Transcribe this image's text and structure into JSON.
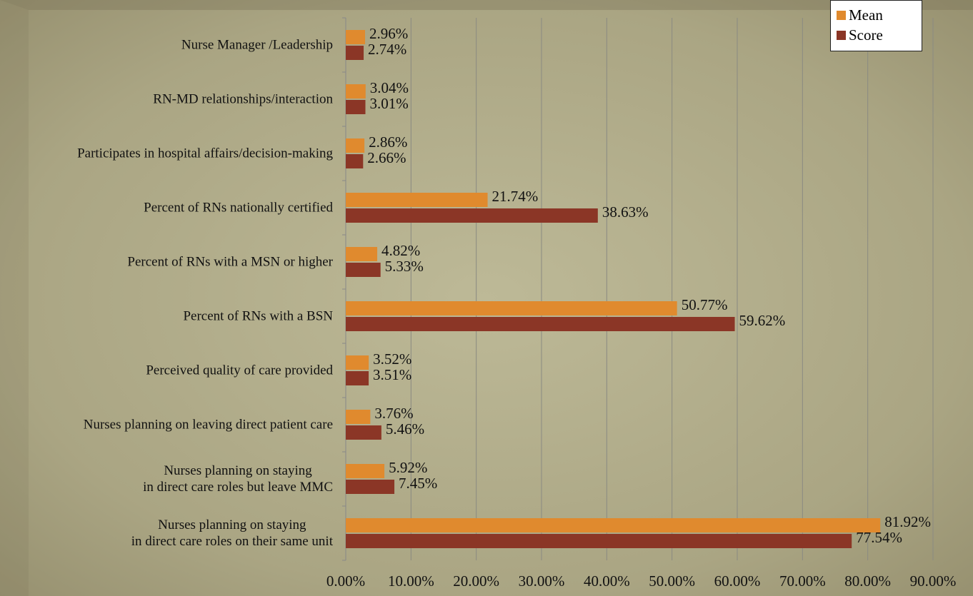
{
  "chart_data": {
    "type": "bar",
    "orientation": "horizontal",
    "categories": [
      "Nurse Manager /Leadership",
      "RN-MD relationships/interaction",
      "Participates in hospital affairs/decision-making",
      "Percent of RNs nationally certified",
      "Percent of RNs with a MSN or higher",
      "Percent of RNs with a BSN",
      "Perceived quality of care provided",
      "Nurses planning on leaving direct patient care",
      "Nurses planning on staying\nin direct care roles but leave MMC",
      "Nurses planning on staying\nin direct care roles on their same unit"
    ],
    "series": [
      {
        "name": "Mean",
        "color": "#e08a2e",
        "values": [
          2.96,
          3.04,
          2.86,
          21.74,
          4.82,
          50.77,
          3.52,
          3.76,
          5.92,
          81.92
        ],
        "value_labels": [
          "2.96%",
          "3.04%",
          "2.86%",
          "21.74%",
          "4.82%",
          "50.77%",
          "3.52%",
          "3.76%",
          "5.92%",
          "81.92%"
        ]
      },
      {
        "name": "Score",
        "color": "#8b3626",
        "values": [
          2.74,
          3.01,
          2.66,
          38.63,
          5.33,
          59.62,
          3.51,
          5.46,
          7.45,
          77.54
        ],
        "value_labels": [
          "2.74%",
          "3.01%",
          "2.66%",
          "38.63%",
          "5.33%",
          "59.62%",
          "3.51%",
          "5.46%",
          "7.45%",
          "77.54%"
        ]
      }
    ],
    "xlim": [
      0,
      90
    ],
    "xticks": [
      {
        "value": 0,
        "label": "0.00%"
      },
      {
        "value": 10,
        "label": "10.00%"
      },
      {
        "value": 20,
        "label": "20.00%"
      },
      {
        "value": 30,
        "label": "30.00%"
      },
      {
        "value": 40,
        "label": "40.00%"
      },
      {
        "value": 50,
        "label": "50.00%"
      },
      {
        "value": 60,
        "label": "60.00%"
      },
      {
        "value": 70,
        "label": "70.00%"
      },
      {
        "value": 80,
        "label": "80.00%"
      },
      {
        "value": 90,
        "label": "90.00%"
      }
    ],
    "grid": true,
    "legend": "top-right"
  }
}
